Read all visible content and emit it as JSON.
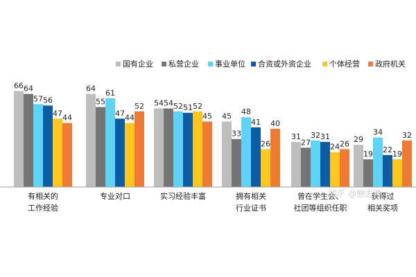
{
  "chart_data": {
    "type": "bar",
    "title": "",
    "xlabel": "",
    "ylabel": "",
    "ylim": [
      0,
      70
    ],
    "grid": false,
    "legend_position": "top-right",
    "categories": [
      [
        "有相关的",
        "工作经验"
      ],
      [
        "专业对口"
      ],
      [
        "实习经验丰富"
      ],
      [
        "拥有相关",
        "行业证书"
      ],
      [
        "曾在学生会、",
        "社团等组织任职"
      ],
      [
        "获得过",
        "相关奖项"
      ]
    ],
    "series": [
      {
        "name": "国有企业",
        "color": "#bdbdbd",
        "values": [
          66,
          64,
          54,
          45,
          31,
          29
        ]
      },
      {
        "name": "私营企业",
        "color": "#757575",
        "values": [
          64,
          55,
          54,
          33,
          27,
          19
        ]
      },
      {
        "name": "事业单位",
        "color": "#5fd3f3",
        "values": [
          57,
          61,
          52,
          48,
          32,
          34
        ]
      },
      {
        "name": "合资或外资企业",
        "color": "#0c5ca6",
        "values": [
          56,
          47,
          51,
          41,
          31,
          22
        ]
      },
      {
        "name": "个体经营",
        "color": "#ffc61e",
        "values": [
          47,
          44,
          52,
          26,
          24,
          19
        ]
      },
      {
        "name": "政府机关",
        "color": "#ef7a33",
        "values": [
          44,
          52,
          45,
          40,
          26,
          32
        ]
      }
    ]
  },
  "watermark": "知乎 @鲍志君"
}
